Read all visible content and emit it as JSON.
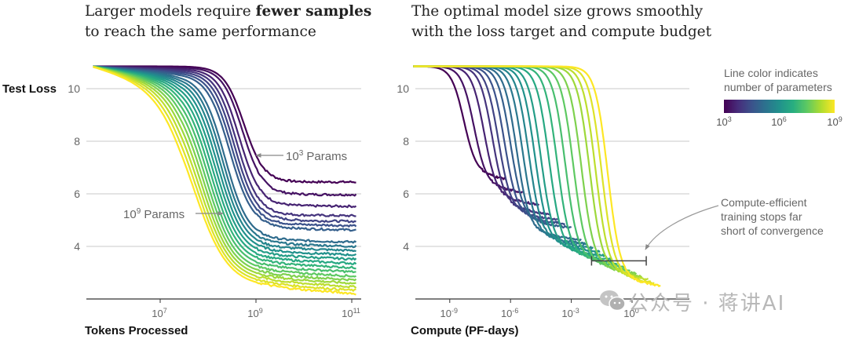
{
  "titles": {
    "left_plain": "Larger models require ",
    "left_bold": "fewer samples",
    "left_line2": "to reach the same performance",
    "right_line1": "The optimal model size grows smoothly",
    "right_line2": "with the loss target and compute budget"
  },
  "watermark": "公众号 · 蒋讲AI",
  "chart_data": [
    {
      "type": "line",
      "title": "Larger models require fewer samples to reach the same performance",
      "ylabel": "Test Loss",
      "xlabel": "Tokens Processed",
      "xscale": "log",
      "xlim_log10": [
        5.6,
        11.1
      ],
      "ylim": [
        2.4,
        11.0
      ],
      "yticks": [
        4,
        6,
        8,
        10
      ],
      "ytick_labels": [
        "4",
        "6",
        "8",
        "10"
      ],
      "xticks_log10": [
        7,
        9,
        11
      ],
      "xtick_labels": [
        [
          "10",
          "7"
        ],
        [
          "10",
          "9"
        ],
        [
          "10",
          "11"
        ]
      ],
      "grid": "horizontal",
      "annotations": [
        {
          "text_base": "10",
          "text_exp": "3",
          "text_rest": " Params",
          "points_to": "smallest model curve",
          "arrow": "left"
        },
        {
          "text_base": "10",
          "text_exp": "9",
          "text_rest": " Params",
          "points_to": "largest model curve",
          "arrow": "right"
        }
      ],
      "series_note": "21 curves, parameter count from 1e3 (purple) to 1e9 (yellow); loss starts ~10.85, drops, then plateaus at final loss",
      "series": [
        {
          "name": "1e3",
          "log10_params": 3.0,
          "final_loss": 6.45,
          "drop_center_log10_tokens": 8.75
        },
        {
          "name": "2e3",
          "log10_params": 3.3,
          "final_loss": 5.98,
          "drop_center_log10_tokens": 8.72
        },
        {
          "name": "4e3",
          "log10_params": 3.6,
          "final_loss": 5.55,
          "drop_center_log10_tokens": 8.65
        },
        {
          "name": "8e3",
          "log10_params": 3.9,
          "final_loss": 5.2,
          "drop_center_log10_tokens": 8.6
        },
        {
          "name": "1.6e4",
          "log10_params": 4.2,
          "final_loss": 5.0,
          "drop_center_log10_tokens": 8.55
        },
        {
          "name": "3e4",
          "log10_params": 4.5,
          "final_loss": 4.85,
          "drop_center_log10_tokens": 8.5
        },
        {
          "name": "6e4",
          "log10_params": 4.8,
          "final_loss": 4.7,
          "drop_center_log10_tokens": 8.45
        },
        {
          "name": "1.3e5",
          "log10_params": 5.1,
          "final_loss": 4.25,
          "drop_center_log10_tokens": 8.35
        },
        {
          "name": "2.5e5",
          "log10_params": 5.4,
          "final_loss": 4.1,
          "drop_center_log10_tokens": 8.3
        },
        {
          "name": "5e5",
          "log10_params": 5.7,
          "final_loss": 3.95,
          "drop_center_log10_tokens": 8.25
        },
        {
          "name": "1e6",
          "log10_params": 6.0,
          "final_loss": 3.8,
          "drop_center_log10_tokens": 8.2
        },
        {
          "name": "2e6",
          "log10_params": 6.3,
          "final_loss": 3.65,
          "drop_center_log10_tokens": 8.15
        },
        {
          "name": "4e6",
          "log10_params": 6.6,
          "final_loss": 3.5,
          "drop_center_log10_tokens": 8.1
        },
        {
          "name": "8e6",
          "log10_params": 6.9,
          "final_loss": 3.35,
          "drop_center_log10_tokens": 8.05
        },
        {
          "name": "1.6e7",
          "log10_params": 7.2,
          "final_loss": 3.2,
          "drop_center_log10_tokens": 8.0
        },
        {
          "name": "3e7",
          "log10_params": 7.5,
          "final_loss": 3.05,
          "drop_center_log10_tokens": 7.95
        },
        {
          "name": "6e7",
          "log10_params": 7.8,
          "final_loss": 2.92,
          "drop_center_log10_tokens": 7.9
        },
        {
          "name": "1.3e8",
          "log10_params": 8.1,
          "final_loss": 2.8,
          "drop_center_log10_tokens": 7.85
        },
        {
          "name": "2.5e8",
          "log10_params": 8.4,
          "final_loss": 2.68,
          "drop_center_log10_tokens": 7.8
        },
        {
          "name": "5e8",
          "log10_params": 8.7,
          "final_loss": 2.56,
          "drop_center_log10_tokens": 7.75
        },
        {
          "name": "1e9",
          "log10_params": 9.0,
          "final_loss": 2.45,
          "drop_center_log10_tokens": 7.7
        }
      ]
    },
    {
      "type": "line",
      "title": "The optimal model size grows smoothly with the loss target and compute budget",
      "ylabel": "Test Loss",
      "xlabel": "Compute (PF-days)",
      "xscale": "log",
      "xlim_log10": [
        -11,
        1.8
      ],
      "ylim": [
        2.4,
        11.0
      ],
      "yticks": [
        4,
        6,
        8,
        10
      ],
      "ytick_labels": [
        "4",
        "6",
        "8",
        "10"
      ],
      "xticks_log10": [
        -9,
        -6,
        -3,
        0
      ],
      "xtick_labels": [
        [
          "10",
          "-9"
        ],
        [
          "10",
          "-6"
        ],
        [
          "10",
          "-3"
        ],
        [
          "10",
          "0"
        ]
      ],
      "grid": "horizontal",
      "colorbar": {
        "label_line1": "Line color indicates",
        "label_line2": "number of parameters",
        "colormap": "viridis",
        "ticks": [
          [
            "10",
            "3"
          ],
          [
            "10",
            "6"
          ],
          [
            "10",
            "9"
          ]
        ],
        "range_log10": [
          3,
          9
        ]
      },
      "annotations": [
        {
          "text_line1": "Compute-efficient",
          "text_line2": "training stops far",
          "text_line3": "short of convergence",
          "points_to": "compute-efficient frontier bracket near loss 3.5"
        }
      ],
      "frontier_bracket": {
        "x_log10_range": [
          -2.0,
          0.7
        ],
        "loss": 3.45
      },
      "series_note": "Same 21 runs plotted against compute; larger models shift right",
      "series": [
        {
          "name": "1e3",
          "log10_params": 3.0,
          "drop_center_log10_compute": -8.3,
          "end_log10_compute": -6.2
        },
        {
          "name": "2e3",
          "log10_params": 3.3,
          "drop_center_log10_compute": -7.8,
          "end_log10_compute": -5.4
        },
        {
          "name": "4e3",
          "log10_params": 3.6,
          "drop_center_log10_compute": -7.3,
          "end_log10_compute": -4.6
        },
        {
          "name": "8e3",
          "log10_params": 3.9,
          "drop_center_log10_compute": -6.9,
          "end_log10_compute": -4.0
        },
        {
          "name": "1.6e4",
          "log10_params": 4.2,
          "drop_center_log10_compute": -6.6,
          "end_log10_compute": -3.6
        },
        {
          "name": "3e4",
          "log10_params": 4.5,
          "drop_center_log10_compute": -6.3,
          "end_log10_compute": -3.3
        },
        {
          "name": "6e4",
          "log10_params": 4.8,
          "drop_center_log10_compute": -6.0,
          "end_log10_compute": -3.0
        },
        {
          "name": "1.3e5",
          "log10_params": 5.1,
          "drop_center_log10_compute": -5.7,
          "end_log10_compute": -2.5
        },
        {
          "name": "2.5e5",
          "log10_params": 5.4,
          "drop_center_log10_compute": -5.4,
          "end_log10_compute": -2.2
        },
        {
          "name": "5e5",
          "log10_params": 5.7,
          "drop_center_log10_compute": -5.1,
          "end_log10_compute": -1.9
        },
        {
          "name": "1e6",
          "log10_params": 6.0,
          "drop_center_log10_compute": -4.8,
          "end_log10_compute": -1.6
        },
        {
          "name": "2e6",
          "log10_params": 6.3,
          "drop_center_log10_compute": -4.5,
          "end_log10_compute": -1.3
        },
        {
          "name": "4e6",
          "log10_params": 6.6,
          "drop_center_log10_compute": -4.1,
          "end_log10_compute": -1.0
        },
        {
          "name": "8e6",
          "log10_params": 6.9,
          "drop_center_log10_compute": -3.7,
          "end_log10_compute": -0.7
        },
        {
          "name": "1.6e7",
          "log10_params": 7.2,
          "drop_center_log10_compute": -3.3,
          "end_log10_compute": -0.4
        },
        {
          "name": "3e7",
          "log10_params": 7.5,
          "drop_center_log10_compute": -2.9,
          "end_log10_compute": -0.1
        },
        {
          "name": "6e7",
          "log10_params": 7.8,
          "drop_center_log10_compute": -2.5,
          "end_log10_compute": 0.2
        },
        {
          "name": "1.3e8",
          "log10_params": 8.1,
          "drop_center_log10_compute": -2.1,
          "end_log10_compute": 0.5
        },
        {
          "name": "2.5e8",
          "log10_params": 8.4,
          "drop_center_log10_compute": -1.8,
          "end_log10_compute": 0.8
        },
        {
          "name": "5e8",
          "log10_params": 8.7,
          "drop_center_log10_compute": -1.5,
          "end_log10_compute": 1.1
        },
        {
          "name": "1e9",
          "log10_params": 9.0,
          "drop_center_log10_compute": -1.2,
          "end_log10_compute": 1.4
        }
      ]
    }
  ]
}
